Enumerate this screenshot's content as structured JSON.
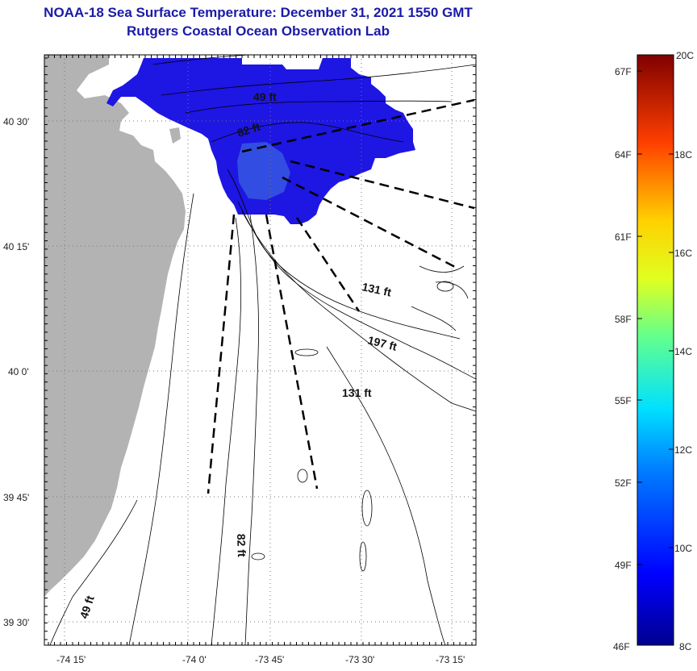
{
  "header": {
    "title": "NOAA-18 Sea Surface Temperature:  December 31, 2021 1550 GMT",
    "subtitle": "Rutgers Coastal Ocean Observation Lab"
  },
  "map": {
    "lon_labels": [
      "-74 15'",
      "-74 0'",
      "-73 45'",
      "-73 30'",
      "-73 15'"
    ],
    "lat_labels": [
      "40 30'",
      "40 15'",
      "40 0'",
      "39 45'",
      "39 30'"
    ],
    "contour_labels": [
      "49 ft",
      "82 ft",
      "131 ft",
      "197 ft",
      "131 ft",
      "82 ft",
      "49 ft"
    ],
    "colors": {
      "land": "#b3b3b3",
      "sst_cold": "#1a14e0",
      "sst_core": "#2e55dd"
    }
  },
  "colorbar": {
    "fahrenheit_labels": [
      "67F",
      "64F",
      "61F",
      "58F",
      "55F",
      "52F",
      "49F",
      "46F"
    ],
    "celsius_labels": [
      "20C",
      "18C",
      "16C",
      "14C",
      "12C",
      "10C",
      "8C"
    ],
    "range_c": [
      8,
      20
    ]
  }
}
